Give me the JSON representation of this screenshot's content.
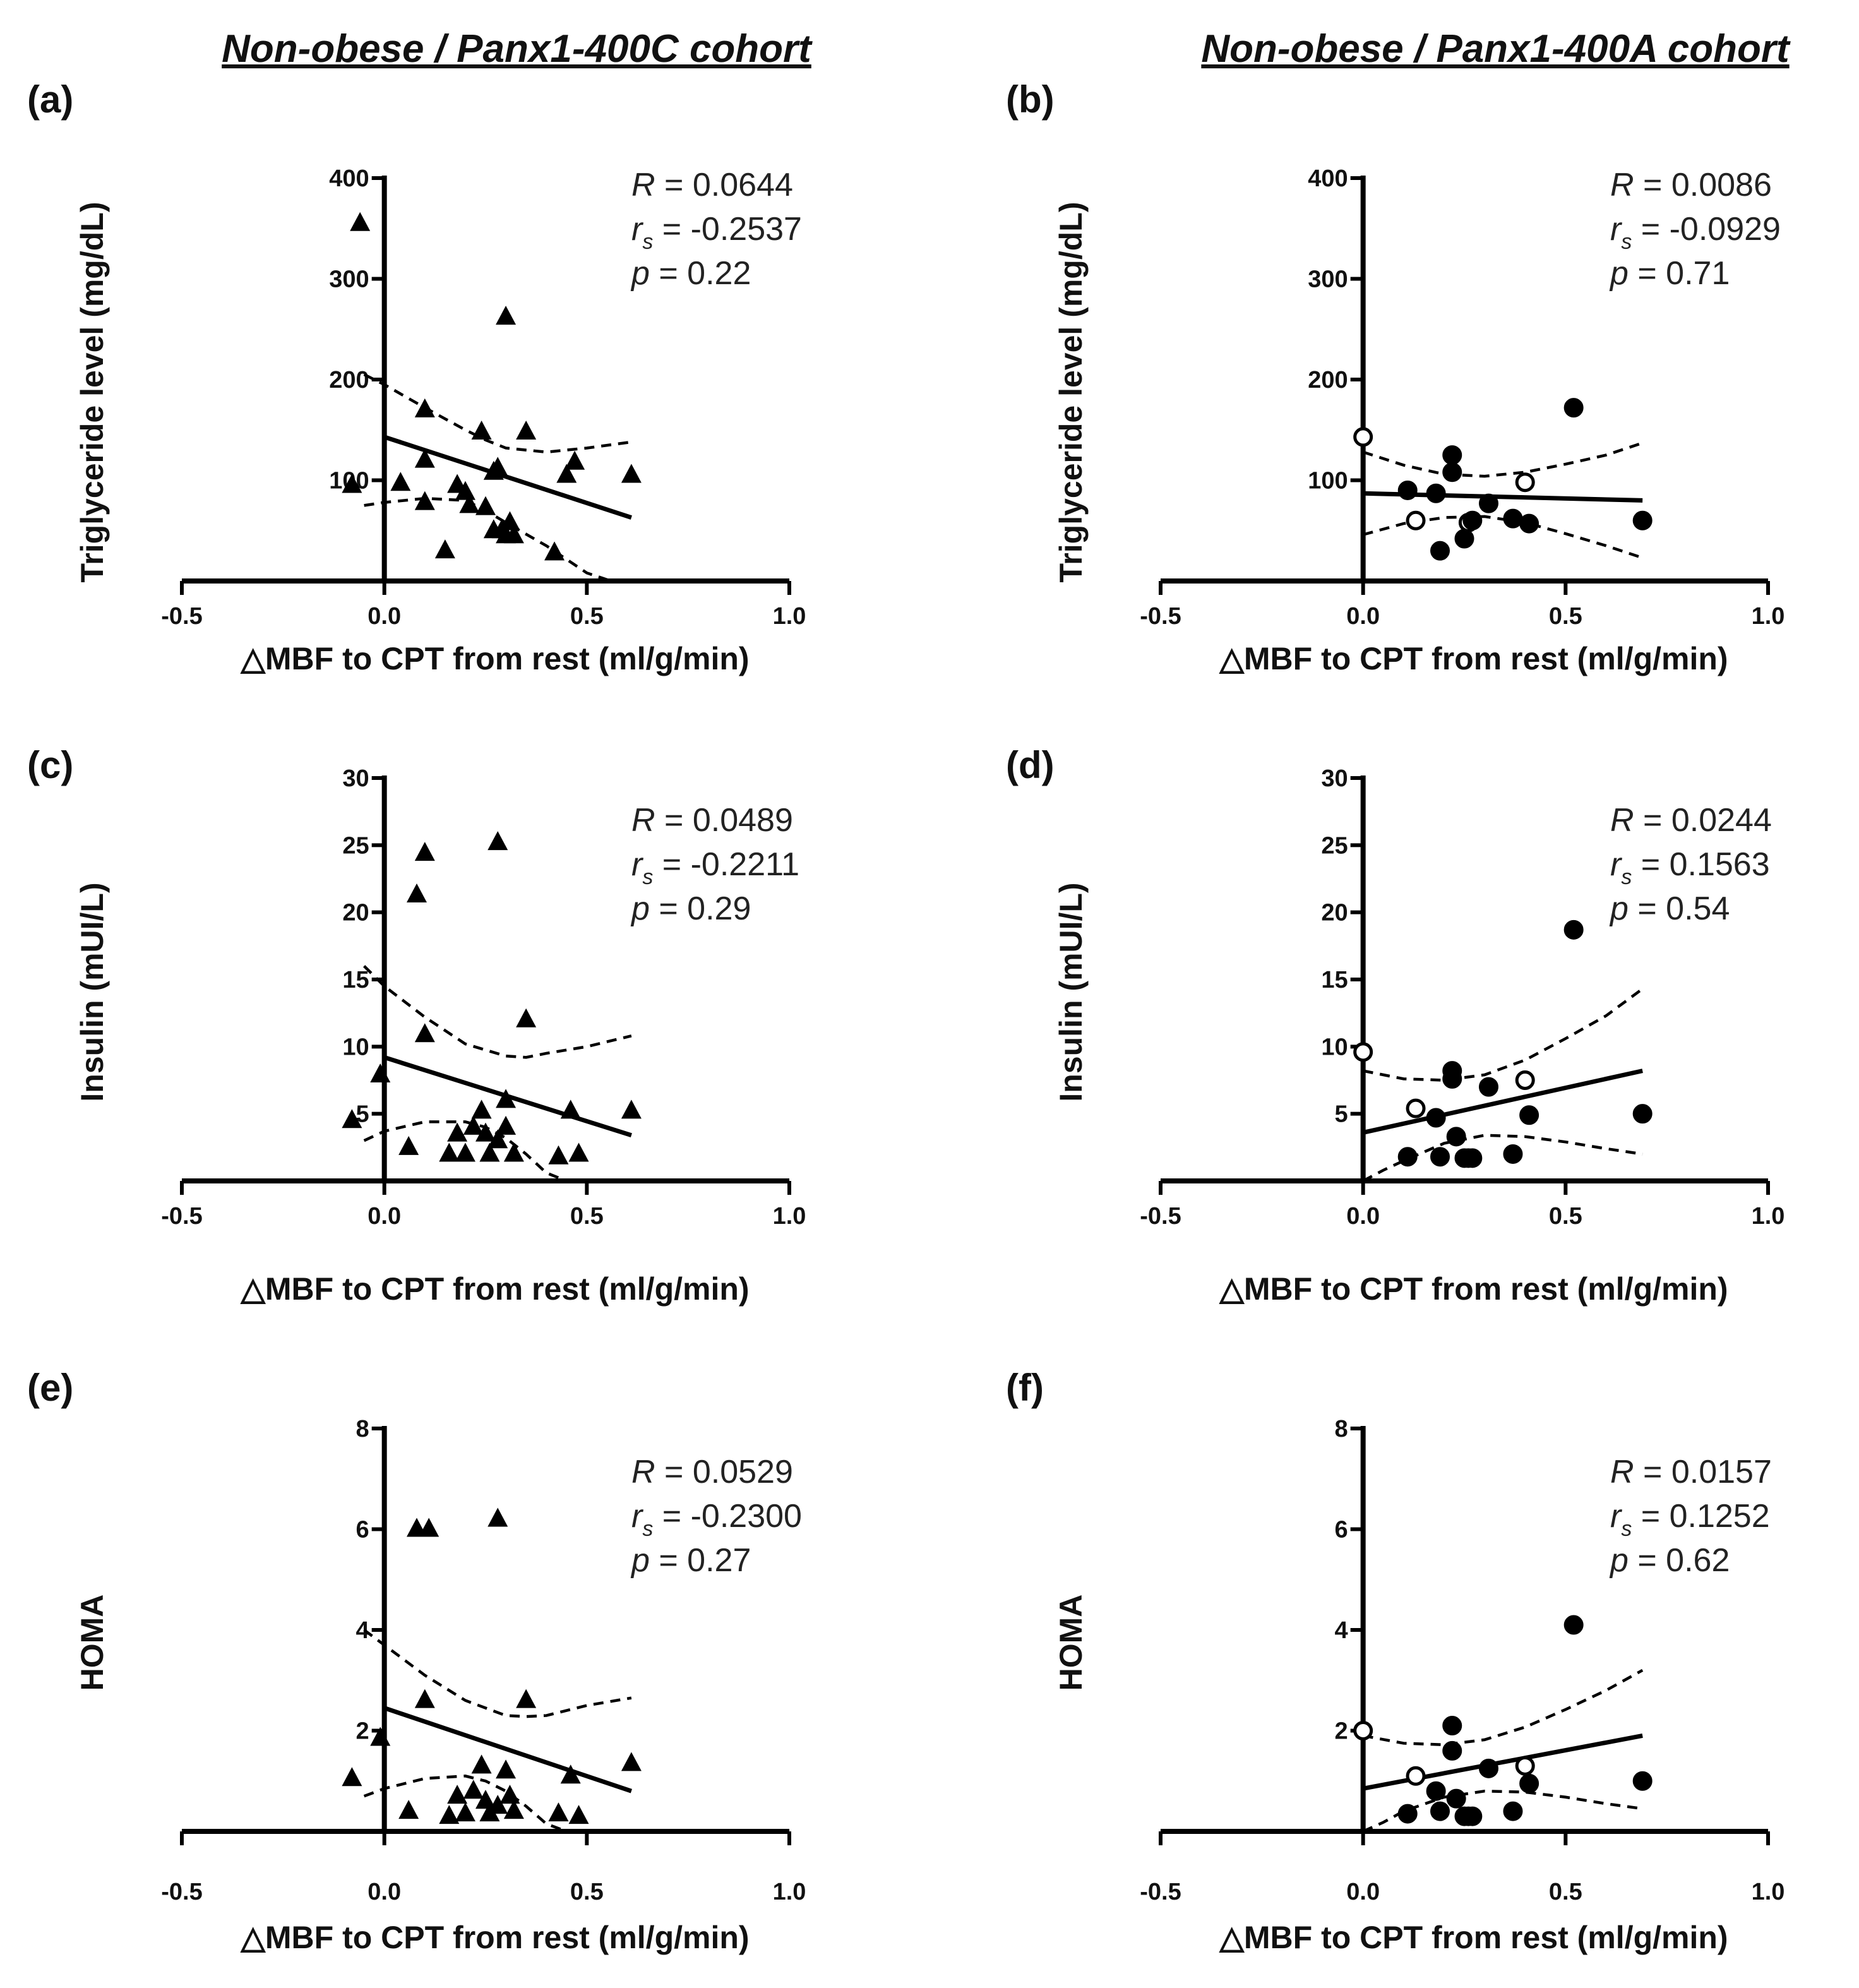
{
  "titles": {
    "left": "Non-obese / Panx1-400C cohort",
    "right": "Non-obese / Panx1-400A cohort"
  },
  "chart_data": [
    {
      "panel": "(a)",
      "type": "scatter",
      "cohort": "Panx1-400C",
      "marker": "triangle",
      "xlabel": "△MBF to CPT from rest (ml/g/min)",
      "ylabel": "Triglyceride level (mg/dL)",
      "xlim": [
        -0.5,
        1.0
      ],
      "ylim": [
        0,
        400
      ],
      "xticks": [
        "-0.5",
        "0.0",
        "0.5",
        "1.0"
      ],
      "yticks": [
        "100",
        "200",
        "300",
        "400"
      ],
      "ytick_values": [
        100,
        200,
        300,
        400
      ],
      "stats": {
        "R": "0.0644",
        "rs": "-0.2537",
        "p": "0.22"
      },
      "regression": {
        "x": [
          0.0,
          0.61
        ],
        "y": [
          143,
          63
        ]
      },
      "ci_upper": {
        "x": [
          -0.05,
          0.0,
          0.1,
          0.2,
          0.25,
          0.3,
          0.4,
          0.5,
          0.61
        ],
        "y": [
          205,
          195,
          172,
          150,
          140,
          132,
          128,
          132,
          138
        ]
      },
      "ci_lower": {
        "x": [
          -0.05,
          0.0,
          0.1,
          0.2,
          0.25,
          0.3,
          0.4,
          0.5,
          0.56
        ],
        "y": [
          75,
          78,
          82,
          80,
          70,
          58,
          35,
          8,
          0
        ]
      },
      "points": [
        {
          "x": -0.06,
          "y": 355,
          "filled": true
        },
        {
          "x": -0.08,
          "y": 95,
          "filled": true
        },
        {
          "x": 0.04,
          "y": 97,
          "filled": true
        },
        {
          "x": 0.1,
          "y": 170,
          "filled": true
        },
        {
          "x": 0.1,
          "y": 120,
          "filled": true
        },
        {
          "x": 0.1,
          "y": 78,
          "filled": true
        },
        {
          "x": 0.15,
          "y": 30,
          "filled": true
        },
        {
          "x": 0.18,
          "y": 95,
          "filled": true
        },
        {
          "x": 0.2,
          "y": 88,
          "filled": true
        },
        {
          "x": 0.21,
          "y": 75,
          "filled": true
        },
        {
          "x": 0.24,
          "y": 148,
          "filled": true
        },
        {
          "x": 0.25,
          "y": 73,
          "filled": true
        },
        {
          "x": 0.27,
          "y": 108,
          "filled": true
        },
        {
          "x": 0.27,
          "y": 50,
          "filled": true
        },
        {
          "x": 0.28,
          "y": 112,
          "filled": true
        },
        {
          "x": 0.29,
          "y": 50,
          "filled": true
        },
        {
          "x": 0.3,
          "y": 262,
          "filled": true
        },
        {
          "x": 0.3,
          "y": 45,
          "filled": true
        },
        {
          "x": 0.31,
          "y": 58,
          "filled": true
        },
        {
          "x": 0.32,
          "y": 45,
          "filled": true
        },
        {
          "x": 0.35,
          "y": 148,
          "filled": true
        },
        {
          "x": 0.42,
          "y": 28,
          "filled": true
        },
        {
          "x": 0.45,
          "y": 105,
          "filled": true
        },
        {
          "x": 0.47,
          "y": 118,
          "filled": true
        },
        {
          "x": 0.61,
          "y": 105,
          "filled": true
        }
      ]
    },
    {
      "panel": "(b)",
      "type": "scatter",
      "cohort": "Panx1-400A",
      "marker": "circle",
      "xlabel": "△MBF to CPT from rest (ml/g/min)",
      "ylabel": "Triglyceride level (mg/dL)",
      "xlim": [
        -0.5,
        1.0
      ],
      "ylim": [
        0,
        400
      ],
      "xticks": [
        "-0.5",
        "0.0",
        "0.5",
        "1.0"
      ],
      "yticks": [
        "100",
        "200",
        "300",
        "400"
      ],
      "ytick_values": [
        100,
        200,
        300,
        400
      ],
      "stats": {
        "R": "0.0086",
        "rs": "-0.0929",
        "p": "0.71"
      },
      "regression": {
        "x": [
          0.0,
          0.69
        ],
        "y": [
          87,
          80
        ]
      },
      "ci_upper": {
        "x": [
          0.0,
          0.1,
          0.2,
          0.3,
          0.4,
          0.5,
          0.6,
          0.69
        ],
        "y": [
          128,
          115,
          106,
          104,
          108,
          116,
          125,
          137
        ]
      },
      "ci_lower": {
        "x": [
          0.0,
          0.1,
          0.2,
          0.3,
          0.4,
          0.5,
          0.6,
          0.69
        ],
        "y": [
          46,
          57,
          63,
          64,
          58,
          47,
          35,
          23
        ]
      },
      "points": [
        {
          "x": 0.0,
          "y": 143,
          "filled": false
        },
        {
          "x": 0.11,
          "y": 90,
          "filled": true
        },
        {
          "x": 0.13,
          "y": 60,
          "filled": false
        },
        {
          "x": 0.18,
          "y": 87,
          "filled": true
        },
        {
          "x": 0.19,
          "y": 30,
          "filled": true
        },
        {
          "x": 0.22,
          "y": 108,
          "filled": true
        },
        {
          "x": 0.22,
          "y": 125,
          "filled": true
        },
        {
          "x": 0.25,
          "y": 42,
          "filled": true
        },
        {
          "x": 0.26,
          "y": 58,
          "filled": false
        },
        {
          "x": 0.27,
          "y": 60,
          "filled": true
        },
        {
          "x": 0.31,
          "y": 77,
          "filled": true
        },
        {
          "x": 0.37,
          "y": 62,
          "filled": true
        },
        {
          "x": 0.4,
          "y": 98,
          "filled": false
        },
        {
          "x": 0.41,
          "y": 57,
          "filled": true
        },
        {
          "x": 0.52,
          "y": 172,
          "filled": true
        },
        {
          "x": 0.69,
          "y": 60,
          "filled": true
        }
      ]
    },
    {
      "panel": "(c)",
      "type": "scatter",
      "cohort": "Panx1-400C",
      "marker": "triangle",
      "xlabel": "△MBF to CPT from rest (ml/g/min)",
      "ylabel": "Insulin (mUI/L)",
      "xlim": [
        -0.5,
        1.0
      ],
      "ylim": [
        0,
        30
      ],
      "xticks": [
        "-0.5",
        "0.0",
        "0.5",
        "1.0"
      ],
      "yticks": [
        "5",
        "10",
        "15",
        "20",
        "25",
        "30"
      ],
      "ytick_values": [
        5,
        10,
        15,
        20,
        25,
        30
      ],
      "stats": {
        "R": "0.0489",
        "rs": "-0.2211",
        "p": "0.29"
      },
      "regression": {
        "x": [
          0.0,
          0.61
        ],
        "y": [
          9.2,
          3.4
        ]
      },
      "ci_upper": {
        "x": [
          -0.05,
          0.0,
          0.1,
          0.2,
          0.3,
          0.35,
          0.4,
          0.5,
          0.61
        ],
        "y": [
          16.0,
          14.5,
          12.2,
          10.2,
          9.3,
          9.2,
          9.5,
          10.0,
          10.8
        ]
      },
      "ci_lower": {
        "x": [
          -0.05,
          0.0,
          0.1,
          0.2,
          0.25,
          0.3,
          0.35,
          0.4,
          0.45
        ],
        "y": [
          3.0,
          3.7,
          4.4,
          4.4,
          4.0,
          3.2,
          2.0,
          0.6,
          0.0
        ]
      },
      "points": [
        {
          "x": -0.08,
          "y": 4.5,
          "filled": true
        },
        {
          "x": -0.01,
          "y": 7.9,
          "filled": true
        },
        {
          "x": 0.06,
          "y": 2.5,
          "filled": true
        },
        {
          "x": 0.1,
          "y": 24.4,
          "filled": true
        },
        {
          "x": 0.08,
          "y": 21.3,
          "filled": true
        },
        {
          "x": 0.1,
          "y": 10.9,
          "filled": true
        },
        {
          "x": 0.16,
          "y": 2.0,
          "filled": true
        },
        {
          "x": 0.18,
          "y": 3.5,
          "filled": true
        },
        {
          "x": 0.2,
          "y": 2.0,
          "filled": true
        },
        {
          "x": 0.22,
          "y": 4.0,
          "filled": true
        },
        {
          "x": 0.24,
          "y": 5.2,
          "filled": true
        },
        {
          "x": 0.25,
          "y": 3.5,
          "filled": true
        },
        {
          "x": 0.26,
          "y": 2.0,
          "filled": true
        },
        {
          "x": 0.28,
          "y": 25.2,
          "filled": true
        },
        {
          "x": 0.28,
          "y": 3.0,
          "filled": true
        },
        {
          "x": 0.3,
          "y": 6.0,
          "filled": true
        },
        {
          "x": 0.3,
          "y": 4.0,
          "filled": true
        },
        {
          "x": 0.32,
          "y": 2.0,
          "filled": true
        },
        {
          "x": 0.35,
          "y": 12.0,
          "filled": true
        },
        {
          "x": 0.43,
          "y": 1.8,
          "filled": true
        },
        {
          "x": 0.46,
          "y": 5.2,
          "filled": true
        },
        {
          "x": 0.48,
          "y": 2.0,
          "filled": true
        },
        {
          "x": 0.61,
          "y": 5.2,
          "filled": true
        }
      ]
    },
    {
      "panel": "(d)",
      "type": "scatter",
      "cohort": "Panx1-400A",
      "marker": "circle",
      "xlabel": "△MBF to CPT from rest (ml/g/min)",
      "ylabel": "Insulin (mUI/L)",
      "xlim": [
        -0.5,
        1.0
      ],
      "ylim": [
        0,
        30
      ],
      "xticks": [
        "-0.5",
        "0.0",
        "0.5",
        "1.0"
      ],
      "yticks": [
        "5",
        "10",
        "15",
        "20",
        "25",
        "30"
      ],
      "ytick_values": [
        5,
        10,
        15,
        20,
        25,
        30
      ],
      "stats": {
        "R": "0.0244",
        "rs": "0.1563",
        "p": "0.54"
      },
      "regression": {
        "x": [
          0.0,
          0.69
        ],
        "y": [
          3.6,
          8.2
        ]
      },
      "ci_upper": {
        "x": [
          0.0,
          0.1,
          0.2,
          0.3,
          0.4,
          0.5,
          0.6,
          0.69
        ],
        "y": [
          8.2,
          7.6,
          7.5,
          7.9,
          9.0,
          10.6,
          12.3,
          14.3
        ]
      },
      "ci_lower": {
        "x": [
          0.0,
          0.05,
          0.1,
          0.2,
          0.3,
          0.4,
          0.5,
          0.6,
          0.69
        ],
        "y": [
          0.0,
          0.8,
          1.5,
          2.8,
          3.4,
          3.3,
          2.9,
          2.4,
          2.0
        ]
      },
      "points": [
        {
          "x": 0.0,
          "y": 9.6,
          "filled": false
        },
        {
          "x": 0.11,
          "y": 1.8,
          "filled": true
        },
        {
          "x": 0.13,
          "y": 5.4,
          "filled": false
        },
        {
          "x": 0.18,
          "y": 4.7,
          "filled": true
        },
        {
          "x": 0.19,
          "y": 1.8,
          "filled": true
        },
        {
          "x": 0.22,
          "y": 8.2,
          "filled": true
        },
        {
          "x": 0.22,
          "y": 7.6,
          "filled": true
        },
        {
          "x": 0.23,
          "y": 3.3,
          "filled": true
        },
        {
          "x": 0.25,
          "y": 1.7,
          "filled": true
        },
        {
          "x": 0.26,
          "y": 1.7,
          "filled": true
        },
        {
          "x": 0.27,
          "y": 1.7,
          "filled": true
        },
        {
          "x": 0.31,
          "y": 7.0,
          "filled": true
        },
        {
          "x": 0.37,
          "y": 2.0,
          "filled": true
        },
        {
          "x": 0.4,
          "y": 7.5,
          "filled": false
        },
        {
          "x": 0.41,
          "y": 4.9,
          "filled": true
        },
        {
          "x": 0.52,
          "y": 18.7,
          "filled": true
        },
        {
          "x": 0.69,
          "y": 5.0,
          "filled": true
        }
      ]
    },
    {
      "panel": "(e)",
      "type": "scatter",
      "cohort": "Panx1-400C",
      "marker": "triangle",
      "xlabel": "△MBF to CPT from rest (ml/g/min)",
      "ylabel": "HOMA",
      "xlim": [
        -0.5,
        1.0
      ],
      "ylim": [
        0,
        8
      ],
      "xticks": [
        "-0.5",
        "0.0",
        "0.5",
        "1.0"
      ],
      "yticks": [
        "2",
        "4",
        "6",
        "8"
      ],
      "ytick_values": [
        2,
        4,
        6,
        8
      ],
      "stats": {
        "R": "0.0529",
        "rs": "-0.2300",
        "p": "0.27"
      },
      "regression": {
        "x": [
          0.0,
          0.61
        ],
        "y": [
          2.45,
          0.8
        ]
      },
      "ci_upper": {
        "x": [
          -0.05,
          0.0,
          0.1,
          0.2,
          0.3,
          0.35,
          0.4,
          0.5,
          0.61
        ],
        "y": [
          4.0,
          3.7,
          3.1,
          2.6,
          2.3,
          2.28,
          2.3,
          2.5,
          2.65
        ]
      },
      "ci_lower": {
        "x": [
          -0.05,
          0.0,
          0.1,
          0.2,
          0.25,
          0.3,
          0.35,
          0.4,
          0.45
        ],
        "y": [
          0.7,
          0.85,
          1.05,
          1.1,
          1.0,
          0.8,
          0.5,
          0.15,
          0.0
        ]
      },
      "points": [
        {
          "x": -0.08,
          "y": 1.05,
          "filled": true
        },
        {
          "x": -0.01,
          "y": 1.85,
          "filled": true
        },
        {
          "x": 0.06,
          "y": 0.4,
          "filled": true
        },
        {
          "x": 0.08,
          "y": 6.0,
          "filled": true
        },
        {
          "x": 0.11,
          "y": 6.0,
          "filled": true
        },
        {
          "x": 0.1,
          "y": 2.6,
          "filled": true
        },
        {
          "x": 0.16,
          "y": 0.3,
          "filled": true
        },
        {
          "x": 0.18,
          "y": 0.7,
          "filled": true
        },
        {
          "x": 0.2,
          "y": 0.35,
          "filled": true
        },
        {
          "x": 0.22,
          "y": 0.8,
          "filled": true
        },
        {
          "x": 0.24,
          "y": 1.3,
          "filled": true
        },
        {
          "x": 0.25,
          "y": 0.6,
          "filled": true
        },
        {
          "x": 0.26,
          "y": 0.35,
          "filled": true
        },
        {
          "x": 0.28,
          "y": 6.2,
          "filled": true
        },
        {
          "x": 0.28,
          "y": 0.5,
          "filled": true
        },
        {
          "x": 0.3,
          "y": 1.2,
          "filled": true
        },
        {
          "x": 0.31,
          "y": 0.7,
          "filled": true
        },
        {
          "x": 0.32,
          "y": 0.4,
          "filled": true
        },
        {
          "x": 0.35,
          "y": 2.6,
          "filled": true
        },
        {
          "x": 0.43,
          "y": 0.35,
          "filled": true
        },
        {
          "x": 0.46,
          "y": 1.1,
          "filled": true
        },
        {
          "x": 0.48,
          "y": 0.3,
          "filled": true
        },
        {
          "x": 0.61,
          "y": 1.35,
          "filled": true
        }
      ]
    },
    {
      "panel": "(f)",
      "type": "scatter",
      "cohort": "Panx1-400A",
      "marker": "circle",
      "xlabel": "△MBF to CPT from rest (ml/g/min)",
      "ylabel": "HOMA",
      "xlim": [
        -0.5,
        1.0
      ],
      "ylim": [
        0,
        8
      ],
      "xticks": [
        "-0.5",
        "0.0",
        "0.5",
        "1.0"
      ],
      "yticks": [
        "2",
        "4",
        "6",
        "8"
      ],
      "ytick_values": [
        2,
        4,
        6,
        8
      ],
      "stats": {
        "R": "0.0157",
        "rs": "0.1252",
        "p": "0.62"
      },
      "regression": {
        "x": [
          0.0,
          0.69
        ],
        "y": [
          0.85,
          1.9
        ]
      },
      "ci_upper": {
        "x": [
          0.0,
          0.1,
          0.2,
          0.3,
          0.4,
          0.5,
          0.6,
          0.69
        ],
        "y": [
          1.9,
          1.75,
          1.72,
          1.82,
          2.07,
          2.42,
          2.8,
          3.2
        ]
      },
      "ci_lower": {
        "x": [
          0.0,
          0.05,
          0.1,
          0.2,
          0.3,
          0.4,
          0.5,
          0.6,
          0.69
        ],
        "y": [
          0.0,
          0.18,
          0.4,
          0.68,
          0.8,
          0.78,
          0.68,
          0.55,
          0.45
        ]
      },
      "points": [
        {
          "x": 0.0,
          "y": 2.0,
          "filled": false
        },
        {
          "x": 0.11,
          "y": 0.35,
          "filled": true
        },
        {
          "x": 0.13,
          "y": 1.1,
          "filled": false
        },
        {
          "x": 0.18,
          "y": 0.8,
          "filled": true
        },
        {
          "x": 0.19,
          "y": 0.4,
          "filled": true
        },
        {
          "x": 0.22,
          "y": 2.1,
          "filled": true
        },
        {
          "x": 0.22,
          "y": 1.6,
          "filled": true
        },
        {
          "x": 0.23,
          "y": 0.65,
          "filled": true
        },
        {
          "x": 0.25,
          "y": 0.3,
          "filled": true
        },
        {
          "x": 0.26,
          "y": 0.3,
          "filled": true
        },
        {
          "x": 0.27,
          "y": 0.3,
          "filled": true
        },
        {
          "x": 0.31,
          "y": 1.25,
          "filled": true
        },
        {
          "x": 0.37,
          "y": 0.4,
          "filled": true
        },
        {
          "x": 0.4,
          "y": 1.3,
          "filled": false
        },
        {
          "x": 0.41,
          "y": 0.95,
          "filled": true
        },
        {
          "x": 0.52,
          "y": 4.1,
          "filled": true
        },
        {
          "x": 0.69,
          "y": 1.0,
          "filled": true
        }
      ]
    }
  ]
}
